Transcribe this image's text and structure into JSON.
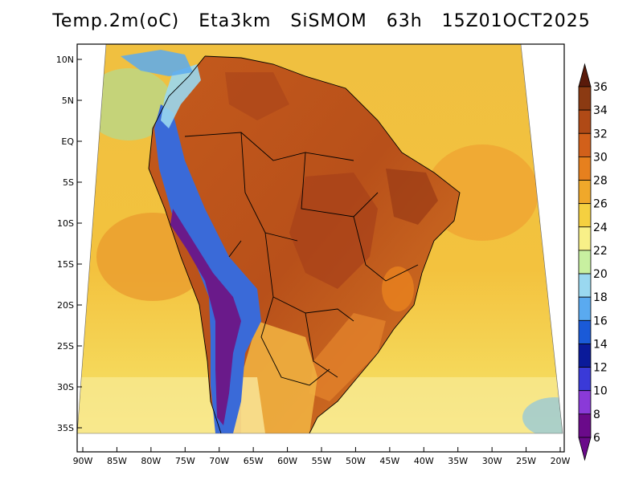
{
  "title": "Temp.2m(oC)   Eta3km   SiSMOM   63h   15Z01OCT2025",
  "lat_labels": [
    "10N",
    "5N",
    "EQ",
    "5S",
    "10S",
    "15S",
    "20S",
    "25S",
    "30S",
    "35S"
  ],
  "lon_labels": [
    "90W",
    "85W",
    "80W",
    "75W",
    "70W",
    "65W",
    "60W",
    "55W",
    "50W",
    "45W",
    "40W",
    "35W",
    "30W",
    "25W",
    "20W"
  ],
  "colorbar": {
    "labels": [
      "36",
      "34",
      "32",
      "30",
      "28",
      "26",
      "24",
      "22",
      "20",
      "18",
      "16",
      "14",
      "12",
      "10",
      "8",
      "6"
    ],
    "colors": [
      "#5a1a0a",
      "#8b3a12",
      "#b04a16",
      "#d2601a",
      "#e6801e",
      "#f0a82a",
      "#f5d040",
      "#f8f088",
      "#c8f0a0",
      "#9ad8f0",
      "#5aaaf0",
      "#1a5ad8",
      "#0a1a9a",
      "#3a3ad8",
      "#8a3ad8",
      "#6a0a8a"
    ]
  },
  "map": {
    "colors": {
      "ocean_warm": "#f5b83a",
      "ocean_cool": "#f5d04a",
      "ocean_cold": "#f8f088",
      "land_hot": "#c85a1a",
      "land_very_hot": "#a8421a",
      "andes_cold": "#6a2aa0",
      "andes_mid": "#3a6ad8",
      "patagonia": "#f8e090",
      "background": "#ffffff"
    }
  }
}
